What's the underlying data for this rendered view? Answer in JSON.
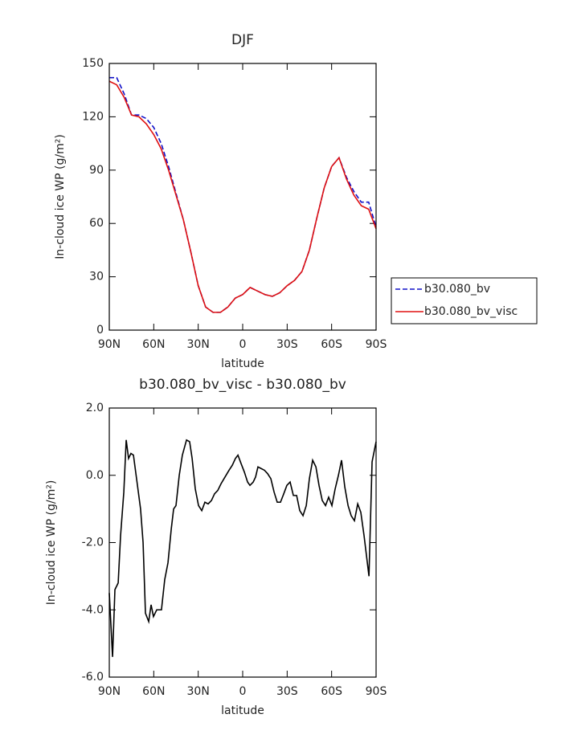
{
  "chart_data": [
    {
      "type": "line",
      "title": "DJF",
      "xlabel": "latitude",
      "ylabel": "In-cloud ice WP (g/m²)",
      "x": [
        90,
        85,
        80,
        75,
        70,
        65,
        60,
        55,
        50,
        45,
        40,
        35,
        30,
        25,
        20,
        15,
        10,
        5,
        0,
        -5,
        -10,
        -15,
        -20,
        -25,
        -30,
        -35,
        -40,
        -45,
        -50,
        -55,
        -60,
        -65,
        -70,
        -75,
        -80,
        -85,
        -90
      ],
      "series": [
        {
          "name": "b30.080_bv",
          "color": "#1010c8",
          "line_style": "dashed",
          "values": [
            142,
            142,
            133,
            121,
            121,
            119,
            114,
            105,
            92,
            77,
            62,
            44,
            25,
            13,
            10,
            10,
            13,
            18,
            20,
            24,
            22,
            20,
            19,
            21,
            25,
            28,
            33,
            45,
            63,
            80,
            92,
            97,
            86,
            78,
            72,
            72,
            58
          ]
        },
        {
          "name": "b30.080_bv_visc",
          "color": "#e01010",
          "line_style": "solid",
          "values": [
            140,
            138,
            131,
            121,
            120,
            116,
            110,
            102,
            90,
            76,
            62,
            44,
            25,
            13,
            10,
            10,
            13,
            18,
            20,
            24,
            22,
            20,
            19,
            21,
            25,
            28,
            33,
            45,
            63,
            80,
            92,
            97,
            85,
            76,
            70,
            68,
            57
          ]
        }
      ],
      "xlim": [
        90,
        -90
      ],
      "xticks": [
        {
          "value": 90,
          "label": "90N"
        },
        {
          "value": 60,
          "label": "60N"
        },
        {
          "value": 30,
          "label": "30N"
        },
        {
          "value": 0,
          "label": "0"
        },
        {
          "value": -30,
          "label": "30S"
        },
        {
          "value": -60,
          "label": "60S"
        },
        {
          "value": -90,
          "label": "90S"
        }
      ],
      "ylim": [
        0,
        150
      ],
      "yticks": [
        0,
        30,
        60,
        90,
        120,
        150
      ],
      "legend_position": "right"
    },
    {
      "type": "line",
      "title": "b30.080_bv_visc - b30.080_bv",
      "xlabel": "latitude",
      "ylabel": "In-cloud ice WP (g/m²)",
      "x": [
        90,
        87.8,
        86.2,
        84.0,
        82.4,
        80.2,
        78.6,
        77.0,
        75.4,
        73.7,
        71.6,
        68.9,
        67.2,
        65.6,
        63.4,
        61.8,
        60.2,
        58.0,
        54.8,
        52.6,
        50.4,
        48.2,
        46.6,
        45.0,
        42.8,
        40.7,
        37.9,
        35.8,
        34.1,
        32.0,
        29.8,
        27.6,
        25.5,
        23.3,
        21.1,
        19.0,
        16.8,
        14.6,
        11.9,
        9.2,
        7.0,
        4.9,
        3.2,
        1.1,
        -1.1,
        -3.3,
        -4.9,
        -7.1,
        -8.7,
        -10.3,
        -12.5,
        -14.7,
        -16.8,
        -19.0,
        -21.2,
        -23.3,
        -25.5,
        -27.7,
        -29.8,
        -32.0,
        -34.2,
        -36.4,
        -38.5,
        -40.7,
        -42.9,
        -45.0,
        -47.2,
        -49.4,
        -51.5,
        -53.7,
        -55.9,
        -58.0,
        -60.2,
        -62.4,
        -64.6,
        -66.7,
        -68.9,
        -71.1,
        -73.2,
        -75.4,
        -77.6,
        -79.7,
        -81.9,
        -84.1,
        -85.2,
        -87.3,
        -90
      ],
      "series": [
        {
          "color": "#000000",
          "line_style": "solid",
          "values": [
            -3.5,
            -5.4,
            -3.4,
            -3.2,
            -1.8,
            -0.5,
            1.05,
            0.5,
            0.65,
            0.6,
            -0.1,
            -1.0,
            -2.0,
            -4.1,
            -4.35,
            -3.85,
            -4.2,
            -4.0,
            -4.0,
            -3.1,
            -2.6,
            -1.6,
            -1.0,
            -0.9,
            0,
            0.6,
            1.05,
            1.0,
            0.5,
            -0.4,
            -0.9,
            -1.05,
            -0.8,
            -0.85,
            -0.75,
            -0.55,
            -0.45,
            -0.25,
            -0.05,
            0.15,
            0.3,
            0.5,
            0.6,
            0.35,
            0.1,
            -0.2,
            -0.3,
            -0.2,
            -0.05,
            0.25,
            0.2,
            0.15,
            0.05,
            -0.1,
            -0.5,
            -0.8,
            -0.8,
            -0.55,
            -0.3,
            -0.2,
            -0.6,
            -0.6,
            -1.05,
            -1.2,
            -0.9,
            -0.1,
            0.45,
            0.25,
            -0.3,
            -0.75,
            -0.9,
            -0.65,
            -0.9,
            -0.4,
            0.0,
            0.45,
            -0.35,
            -0.9,
            -1.2,
            -1.35,
            -0.85,
            -1.1,
            -1.8,
            -2.6,
            -3.0,
            0.4,
            1.0
          ]
        }
      ],
      "xlim": [
        90,
        -90
      ],
      "xticks": [
        {
          "value": 90,
          "label": "90N"
        },
        {
          "value": 60,
          "label": "60N"
        },
        {
          "value": 30,
          "label": "30N"
        },
        {
          "value": 0,
          "label": "0"
        },
        {
          "value": -30,
          "label": "30S"
        },
        {
          "value": -60,
          "label": "60S"
        },
        {
          "value": -90,
          "label": "90S"
        }
      ],
      "ylim": [
        -6,
        2
      ],
      "yticks": [
        {
          "value": -6,
          "label": "-6.0"
        },
        {
          "value": -4,
          "label": "-4.0"
        },
        {
          "value": -2,
          "label": "-2.0"
        },
        {
          "value": 0,
          "label": "0.0"
        },
        {
          "value": 2,
          "label": "2.0"
        }
      ]
    }
  ]
}
